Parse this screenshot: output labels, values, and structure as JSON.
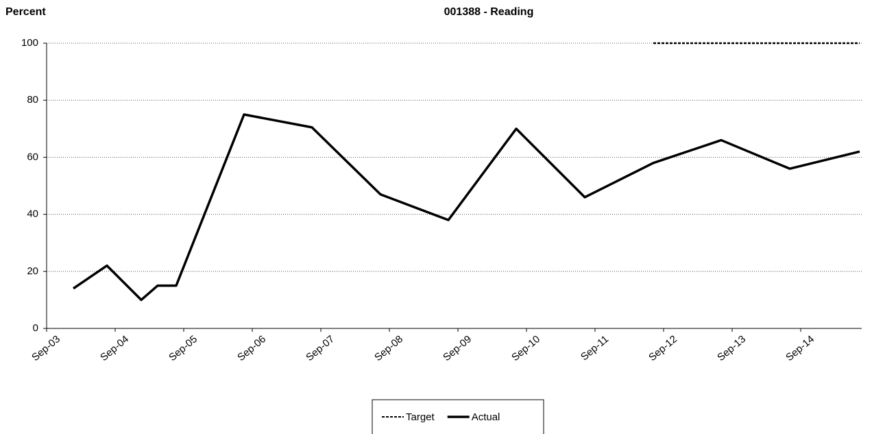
{
  "chart_data": {
    "type": "line",
    "title": "001388 - Reading",
    "y_label": "Percent",
    "x": [
      2004.06,
      2004.55,
      2005.05,
      2005.29,
      2005.56,
      2006.55,
      2007.54,
      2008.54,
      2009.53,
      2010.52,
      2011.52,
      2012.52,
      2013.51,
      2014.51,
      2015.53
    ],
    "series": [
      {
        "name": "Target",
        "color": "#000000",
        "dash": true,
        "values": [
          null,
          null,
          null,
          null,
          null,
          null,
          null,
          null,
          null,
          null,
          null,
          100,
          100,
          100,
          100
        ]
      },
      {
        "name": "Actual",
        "color": "#000000",
        "dash": false,
        "values": [
          14,
          22,
          10,
          15,
          15,
          75,
          70.5,
          47,
          38,
          70,
          46,
          58,
          66,
          56,
          62
        ]
      }
    ],
    "xlim": [
      2003.67,
      2015.56
    ],
    "xticks": [
      {
        "value": 2003.67,
        "label": "Sep-03"
      },
      {
        "value": 2004.67,
        "label": "Sep-04"
      },
      {
        "value": 2005.67,
        "label": "Sep-05"
      },
      {
        "value": 2006.67,
        "label": "Sep-06"
      },
      {
        "value": 2007.67,
        "label": "Sep-07"
      },
      {
        "value": 2008.67,
        "label": "Sep-08"
      },
      {
        "value": 2009.67,
        "label": "Sep-09"
      },
      {
        "value": 2010.67,
        "label": "Sep-10"
      },
      {
        "value": 2011.67,
        "label": "Sep-11"
      },
      {
        "value": 2012.67,
        "label": "Sep-12"
      },
      {
        "value": 2013.67,
        "label": "Sep-13"
      },
      {
        "value": 2014.67,
        "label": "Sep-14"
      }
    ],
    "ylim": [
      0,
      100
    ],
    "yticks": [
      0,
      20,
      40,
      60,
      80,
      100
    ],
    "grid": true,
    "legend": "bottom"
  }
}
